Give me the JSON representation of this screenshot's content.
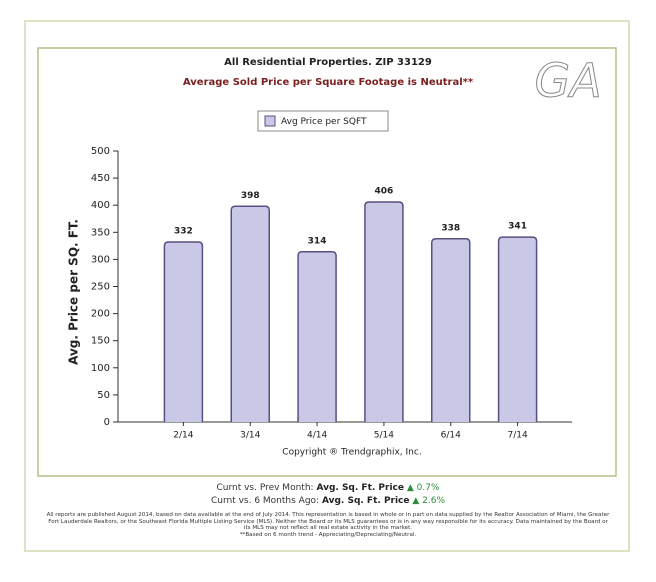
{
  "chart_data": {
    "type": "bar",
    "title": "All Residential Properties. ZIP 33129",
    "subtitle": "Average Sold Price per Square Footage is Neutral**",
    "logo": "GA",
    "x_label": "Copyright ® Trendgraphix, Inc.",
    "y_label": "Avg. Price per SQ. FT.",
    "categories": [
      "2/14",
      "3/14",
      "4/14",
      "5/14",
      "6/14",
      "7/14"
    ],
    "series": [
      {
        "name": "Avg Price per SQFT",
        "color": "#c9c8e6",
        "values": [
          332,
          398,
          314,
          406,
          338,
          341
        ]
      }
    ],
    "ylim": [
      0,
      500
    ],
    "yticks": [
      0,
      50,
      100,
      150,
      200,
      250,
      300,
      350,
      400,
      450,
      500
    ],
    "legend": "top"
  },
  "comparisons": [
    {
      "label": "Curnt vs. Prev Month:",
      "metric": "Avg. Sq. Ft. Price",
      "change": "0.7%"
    },
    {
      "label": "Curnt vs. 6 Months Ago:",
      "metric": "Avg. Sq. Ft. Price",
      "change": "2.6%"
    }
  ],
  "disclaimer": "All reports are published August 2014, based on data available at the end of July 2014. This representation is based in whole or in part on data supplied by the Realtor Association of Miami, the Greater Fort Lauderdale Realtors, or the Southeast Florida Multiple Listing Service (MLS). Neither the Board or its MLS guarantees or is in any way responsible for its accuracy. Data maintained by the Board or its MLS may not reflect all real estate activity in the market.",
  "footnote": "**Based on 6 month trend - Appreciating/Depreciating/Neutral."
}
